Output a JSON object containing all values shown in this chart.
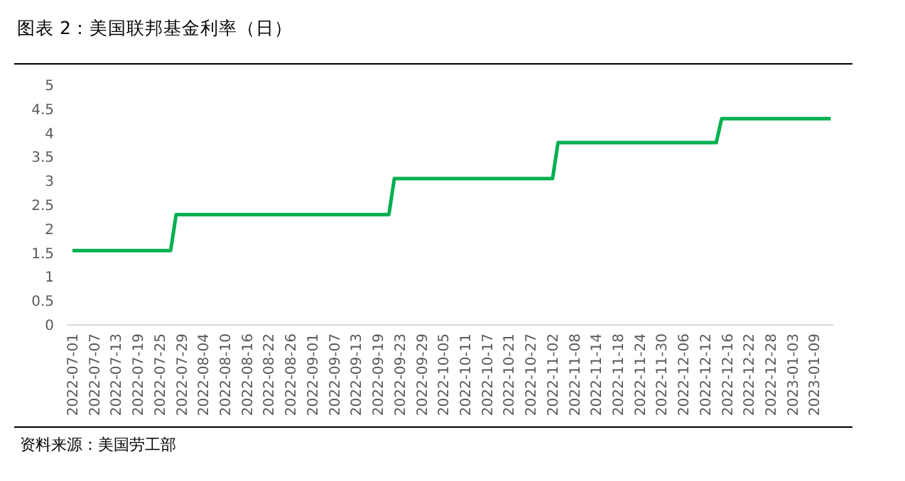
{
  "chart_data": {
    "type": "line",
    "title": "图表 2：美国联邦基金利率（日）",
    "categories": [
      "2022-07-01",
      null,
      null,
      null,
      "2022-07-07",
      null,
      null,
      null,
      "2022-07-13",
      null,
      null,
      null,
      "2022-07-19",
      null,
      null,
      null,
      "2022-07-25",
      null,
      null,
      null,
      "2022-07-29",
      null,
      null,
      null,
      "2022-08-04",
      null,
      null,
      null,
      "2022-08-10",
      null,
      null,
      null,
      "2022-08-16",
      null,
      null,
      null,
      "2022-08-22",
      null,
      null,
      null,
      "2022-08-26",
      null,
      null,
      null,
      "2022-09-01",
      null,
      null,
      null,
      "2022-09-07",
      null,
      null,
      null,
      "2022-09-13",
      null,
      null,
      null,
      "2022-09-19",
      null,
      null,
      null,
      "2022-09-23",
      null,
      null,
      null,
      "2022-09-29",
      null,
      null,
      null,
      "2022-10-05",
      null,
      null,
      null,
      "2022-10-11",
      null,
      null,
      null,
      "2022-10-17",
      null,
      null,
      null,
      "2022-10-21",
      null,
      null,
      null,
      "2022-10-27",
      null,
      null,
      null,
      "2022-11-02",
      null,
      null,
      null,
      "2022-11-08",
      null,
      null,
      null,
      "2022-11-14",
      null,
      null,
      null,
      "2022-11-18",
      null,
      null,
      null,
      "2022-11-24",
      null,
      null,
      null,
      "2022-11-30",
      null,
      null,
      null,
      "2022-12-06",
      null,
      null,
      null,
      "2022-12-12",
      null,
      null,
      null,
      "2022-12-16",
      null,
      null,
      null,
      "2022-12-22",
      null,
      null,
      null,
      "2022-12-28",
      null,
      null,
      null,
      "2023-01-03",
      null,
      null,
      null,
      "2023-01-09",
      null,
      null,
      null
    ],
    "values": [
      1.55,
      1.55,
      1.55,
      1.55,
      1.55,
      1.55,
      1.55,
      1.55,
      1.55,
      1.55,
      1.55,
      1.55,
      1.55,
      1.55,
      1.55,
      1.55,
      1.55,
      1.55,
      1.55,
      2.3,
      2.3,
      2.3,
      2.3,
      2.3,
      2.3,
      2.3,
      2.3,
      2.3,
      2.3,
      2.3,
      2.3,
      2.3,
      2.3,
      2.3,
      2.3,
      2.3,
      2.3,
      2.3,
      2.3,
      2.3,
      2.3,
      2.3,
      2.3,
      2.3,
      2.3,
      2.3,
      2.3,
      2.3,
      2.3,
      2.3,
      2.3,
      2.3,
      2.3,
      2.3,
      2.3,
      2.3,
      2.3,
      2.3,
      2.3,
      3.05,
      3.05,
      3.05,
      3.05,
      3.05,
      3.05,
      3.05,
      3.05,
      3.05,
      3.05,
      3.05,
      3.05,
      3.05,
      3.05,
      3.05,
      3.05,
      3.05,
      3.05,
      3.05,
      3.05,
      3.05,
      3.05,
      3.05,
      3.05,
      3.05,
      3.05,
      3.05,
      3.05,
      3.05,
      3.05,
      3.8,
      3.8,
      3.8,
      3.8,
      3.8,
      3.8,
      3.8,
      3.8,
      3.8,
      3.8,
      3.8,
      3.8,
      3.8,
      3.8,
      3.8,
      3.8,
      3.8,
      3.8,
      3.8,
      3.8,
      3.8,
      3.8,
      3.8,
      3.8,
      3.8,
      3.8,
      3.8,
      3.8,
      3.8,
      3.8,
      4.3,
      4.3,
      4.3,
      4.3,
      4.3,
      4.3,
      4.3,
      4.3,
      4.3,
      4.3,
      4.3,
      4.3,
      4.3,
      4.3,
      4.3,
      4.3,
      4.3,
      4.3,
      4.3,
      4.3,
      4.3
    ],
    "color": "#00b050",
    "ylim": [
      0,
      5
    ],
    "yticks": [
      0,
      0.5,
      1,
      1.5,
      2,
      2.5,
      3,
      3.5,
      4,
      4.5,
      5
    ],
    "annotations": [
      "资料来源：美国劳工部"
    ]
  }
}
